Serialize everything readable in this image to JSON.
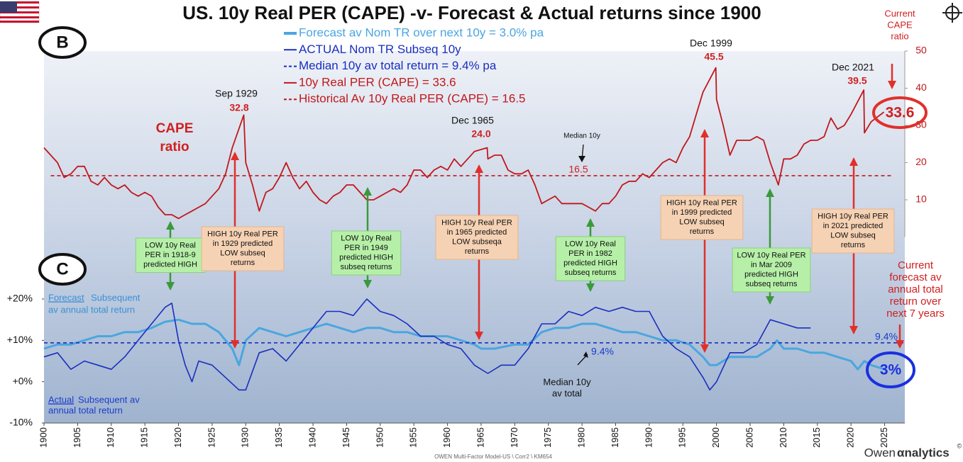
{
  "chart_data": {
    "type": "line",
    "title": "US. 10y Real PER (CAPE) -v- Forecast & Actual returns since 1900",
    "xlim": [
      1900,
      2028
    ],
    "xticks": [
      1900,
      1905,
      1910,
      1915,
      1920,
      1925,
      1930,
      1935,
      1940,
      1945,
      1950,
      1955,
      1960,
      1965,
      1970,
      1975,
      1980,
      1985,
      1990,
      1995,
      2000,
      2005,
      2010,
      2015,
      2020,
      2025
    ],
    "ylim": [
      -10,
      80
    ],
    "yticks": [
      {
        "value": -10,
        "label": "-10%"
      },
      {
        "value": 0,
        "label": "+0%"
      },
      {
        "value": 10,
        "label": "+10%"
      },
      {
        "value": 20,
        "label": "+20%"
      }
    ],
    "y2lim": [
      -50,
      50
    ],
    "y2ticks": [
      10,
      20,
      30,
      40,
      50
    ],
    "series": [
      {
        "name": "Forecast av Nom TR over next 10y  =  3.0% pa",
        "color": "#4aa6e0",
        "x": [
          1900,
          1902,
          1904,
          1906,
          1908,
          1910,
          1912,
          1914,
          1916,
          1918,
          1920,
          1922,
          1924,
          1926,
          1928,
          1929,
          1930,
          1932,
          1934,
          1936,
          1938,
          1940,
          1942,
          1944,
          1946,
          1948,
          1950,
          1952,
          1954,
          1956,
          1958,
          1960,
          1962,
          1964,
          1965,
          1967,
          1970,
          1972,
          1974,
          1976,
          1978,
          1980,
          1982,
          1984,
          1986,
          1988,
          1990,
          1992,
          1994,
          1996,
          1998,
          1999,
          2000,
          2002,
          2004,
          2006,
          2008,
          2009,
          2010,
          2012,
          2014,
          2016,
          2018,
          2020,
          2021,
          2022,
          2023,
          2025
        ],
        "values": [
          8,
          9,
          9,
          10,
          11,
          11,
          12,
          12,
          13,
          14.5,
          15,
          14,
          14,
          12,
          8,
          4,
          10,
          13,
          12,
          11,
          12,
          13,
          14,
          13,
          12,
          13,
          13,
          12,
          12,
          11,
          11,
          11,
          10,
          9,
          8,
          8,
          9,
          9,
          12,
          13,
          13,
          14,
          14,
          13,
          12,
          12,
          11,
          10,
          10,
          9,
          6,
          4,
          4,
          6,
          6,
          6,
          8,
          10,
          8,
          8,
          7,
          7,
          6,
          5,
          3,
          5,
          4,
          3
        ]
      },
      {
        "name": "ACTUAL  Nom TR Subseq 10y",
        "color": "#1a2fbf",
        "x": [
          1900,
          1902,
          1904,
          1906,
          1908,
          1910,
          1912,
          1914,
          1916,
          1918,
          1919,
          1920,
          1921,
          1922,
          1923,
          1925,
          1927,
          1929,
          1930,
          1932,
          1934,
          1936,
          1938,
          1940,
          1942,
          1944,
          1946,
          1948,
          1950,
          1952,
          1954,
          1956,
          1958,
          1960,
          1962,
          1964,
          1966,
          1968,
          1970,
          1972,
          1974,
          1976,
          1978,
          1980,
          1982,
          1984,
          1986,
          1988,
          1990,
          1992,
          1994,
          1996,
          1998,
          1999,
          2000,
          2002,
          2004,
          2006,
          2008,
          2010,
          2012,
          2014
        ],
        "values": [
          6,
          7,
          3,
          5,
          4,
          3,
          6,
          10,
          14,
          18,
          19,
          10,
          4,
          0,
          5,
          4,
          1,
          -2,
          -2,
          7,
          8,
          5,
          9,
          13,
          17,
          17,
          16,
          20,
          17,
          16,
          14,
          11,
          11,
          9,
          8,
          4,
          2,
          4,
          4,
          8,
          14,
          14,
          17,
          16,
          18,
          17,
          18,
          17,
          17,
          11,
          8,
          6,
          1,
          -2,
          0,
          7,
          7,
          9,
          15,
          14,
          13,
          13
        ]
      },
      {
        "name": "Median 10y av  total return  =  9.4% pa",
        "color": "#1a2fbf",
        "dashed": true,
        "x": [
          1900,
          2028
        ],
        "values": [
          9.4,
          9.4
        ]
      },
      {
        "name": "10y Real PER (CAPE)  =  33.6",
        "color": "#c0181c",
        "axis": "y2",
        "x": [
          1900,
          1901,
          1902,
          1903,
          1904,
          1905,
          1906,
          1907,
          1908,
          1909,
          1910,
          1911,
          1912,
          1913,
          1914,
          1915,
          1916,
          1917,
          1918,
          1919,
          1920,
          1921,
          1922,
          1923,
          1924,
          1925,
          1926,
          1927,
          1928,
          1929.7,
          1930,
          1931,
          1932,
          1933,
          1934,
          1935,
          1936,
          1937,
          1938,
          1939,
          1940,
          1941,
          1942,
          1943,
          1944,
          1945,
          1946,
          1947,
          1948,
          1949,
          1950,
          1951,
          1952,
          1953,
          1954,
          1955,
          1956,
          1957,
          1958,
          1959,
          1960,
          1961,
          1962,
          1963,
          1964,
          1965.9,
          1966,
          1967,
          1968,
          1969,
          1970,
          1971,
          1972,
          1973,
          1974,
          1975,
          1976,
          1977,
          1978,
          1979,
          1980,
          1981,
          1982,
          1983,
          1984,
          1985,
          1986,
          1987,
          1988,
          1989,
          1990,
          1991,
          1992,
          1993,
          1994,
          1995,
          1996,
          1997,
          1998,
          1999.9,
          2000,
          2001,
          2002,
          2003,
          2004,
          2005,
          2006,
          2007,
          2008,
          2009.2,
          2010,
          2011,
          2012,
          2013,
          2014,
          2015,
          2016,
          2017,
          2018,
          2019,
          2020,
          2021.9,
          2022,
          2023,
          2024.9
        ],
        "values": [
          24,
          22,
          20,
          16,
          17,
          19,
          19,
          15,
          14,
          16,
          14,
          13,
          14,
          12,
          11,
          12,
          11,
          8,
          6,
          6,
          5,
          6,
          7,
          8,
          9,
          11,
          13,
          17,
          24,
          32.8,
          20,
          14,
          7,
          12,
          13,
          16,
          20,
          16,
          13,
          15,
          12,
          10,
          9,
          11,
          12,
          14,
          14,
          12,
          10,
          10,
          11,
          12,
          13,
          12,
          14,
          18,
          18,
          16,
          18,
          19,
          18,
          21,
          19,
          21,
          23,
          24,
          21,
          22,
          22,
          18,
          17,
          17,
          18,
          14,
          9,
          10,
          11,
          9,
          9,
          9,
          9,
          8,
          7,
          9,
          9,
          11,
          14,
          15,
          15,
          17,
          16,
          18,
          20,
          21,
          20,
          24,
          27,
          33,
          39,
          45.5,
          37,
          30,
          22,
          26,
          26,
          26,
          27,
          26,
          20,
          14,
          21,
          21,
          22,
          25,
          26,
          26,
          27,
          32,
          29,
          30,
          33,
          39.5,
          28,
          31,
          33.6
        ]
      },
      {
        "name": "Historical Av 10y Real PER (CAPE)  =  16.5",
        "color": "#c0181c",
        "dashed": true,
        "axis": "y2",
        "x": [
          1901,
          2026
        ],
        "values": [
          16.5,
          16.5
        ]
      }
    ],
    "labels": [
      "Sep 1929",
      "32.8",
      "Dec 1965",
      "24.0",
      "Dec 1999",
      "45.5",
      "Dec 2021",
      "39.5",
      "CAPE",
      "ratio",
      "Current",
      "CAPE",
      "ratio",
      "Median 10y",
      "16.5",
      "Current",
      "forecast av",
      "annual total",
      "return over",
      "next 7 years",
      "9.4%",
      "9.4%",
      "Median 10y",
      "av total",
      "Forecast",
      "Subsequent",
      "av annual total return",
      "Actual",
      "Subsequent av",
      "annual total return",
      "B",
      "C",
      "33.6",
      "3%",
      "OWEN Multi-Factor Model-US \\ Corr2 \\  KM654",
      "Owen",
      "αnalytics",
      "©"
    ],
    "boxes": [
      {
        "kind": "green",
        "lines": [
          "LOW 10y Real",
          "PER in 1918-9",
          "predicted HIGH"
        ]
      },
      {
        "kind": "orange",
        "lines": [
          "HIGH 10y Real PER",
          "in 1929 predicted",
          "LOW subseq",
          "returns"
        ]
      },
      {
        "kind": "green",
        "lines": [
          "LOW 10y Real",
          "PER in 1949",
          "predicted HIGH",
          "subseq returns"
        ]
      },
      {
        "kind": "orange",
        "lines": [
          "HIGH 10y Real PER",
          "in 1965 predicted",
          "LOW subseqa",
          "returns"
        ]
      },
      {
        "kind": "green",
        "lines": [
          "LOW 10y Real",
          "PER in 1982",
          "predicted HIGH",
          "subseq returns"
        ]
      },
      {
        "kind": "orange",
        "lines": [
          "HIGH 10y Real PER",
          "in 1999 predicted",
          "LOW subseq",
          "returns"
        ]
      },
      {
        "kind": "green",
        "lines": [
          "LOW 10y Real PER",
          "in Mar 2009",
          "predicted HIGH",
          "subseq returns"
        ]
      },
      {
        "kind": "orange",
        "lines": [
          "HIGH 10y Real PER",
          "in 2021 predicted",
          "LOW subseq",
          "returns"
        ]
      }
    ]
  }
}
